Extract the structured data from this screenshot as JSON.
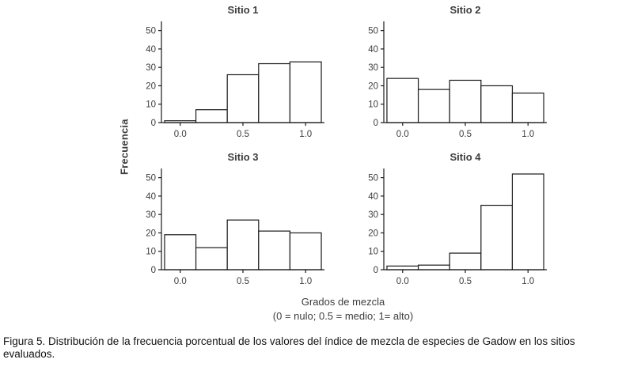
{
  "figure": {
    "ylabel": "Frecuencia",
    "xlabel": "Grados de mezcla",
    "xlabel_note": "(0 = nulo; 0.5 = medio; 1= alto)",
    "caption": "Figura 5. Distribución de la frecuencia porcentual de los valores del índice de mezcla de especies de Gadow en los sitios evaluados."
  },
  "chart_data": [
    {
      "type": "bar",
      "title": "Sitio 1",
      "bin_centers": [
        0,
        0.25,
        0.5,
        0.75,
        1.0
      ],
      "values": [
        1,
        7,
        26,
        32,
        33
      ],
      "bar_width": 0.25,
      "xlim": [
        -0.15,
        1.15
      ],
      "ylim": [
        0,
        55
      ],
      "xticks": [
        0,
        0.5,
        1.0
      ],
      "xtick_labels": [
        "0.0",
        "0.5",
        "1.0"
      ],
      "yticks": [
        0,
        10,
        20,
        30,
        40,
        50
      ],
      "bar_fill": "#ffffff",
      "stroke_color": "#1a1a1a"
    },
    {
      "type": "bar",
      "title": "Sitio 2",
      "bin_centers": [
        0,
        0.25,
        0.5,
        0.75,
        1.0
      ],
      "values": [
        24,
        18,
        23,
        20,
        16
      ],
      "bar_width": 0.25,
      "xlim": [
        -0.15,
        1.15
      ],
      "ylim": [
        0,
        55
      ],
      "xticks": [
        0,
        0.5,
        1.0
      ],
      "xtick_labels": [
        "0.0",
        "0.5",
        "1.0"
      ],
      "yticks": [
        0,
        10,
        20,
        30,
        40,
        50
      ],
      "bar_fill": "#ffffff",
      "stroke_color": "#1a1a1a"
    },
    {
      "type": "bar",
      "title": "Sitio 3",
      "bin_centers": [
        0,
        0.25,
        0.5,
        0.75,
        1.0
      ],
      "values": [
        19,
        12,
        27,
        21,
        20
      ],
      "bar_width": 0.25,
      "xlim": [
        -0.15,
        1.15
      ],
      "ylim": [
        0,
        55
      ],
      "xticks": [
        0,
        0.5,
        1.0
      ],
      "xtick_labels": [
        "0.0",
        "0.5",
        "1.0"
      ],
      "yticks": [
        0,
        10,
        20,
        30,
        40,
        50
      ],
      "bar_fill": "#ffffff",
      "stroke_color": "#1a1a1a"
    },
    {
      "type": "bar",
      "title": "Sitio 4",
      "bin_centers": [
        0,
        0.25,
        0.5,
        0.75,
        1.0
      ],
      "values": [
        2,
        2.5,
        9,
        35,
        52
      ],
      "bar_width": 0.25,
      "xlim": [
        -0.15,
        1.15
      ],
      "ylim": [
        0,
        55
      ],
      "xticks": [
        0,
        0.5,
        1.0
      ],
      "xtick_labels": [
        "0.0",
        "0.5",
        "1.0"
      ],
      "yticks": [
        0,
        10,
        20,
        30,
        40,
        50
      ],
      "bar_fill": "#ffffff",
      "stroke_color": "#1a1a1a"
    }
  ]
}
